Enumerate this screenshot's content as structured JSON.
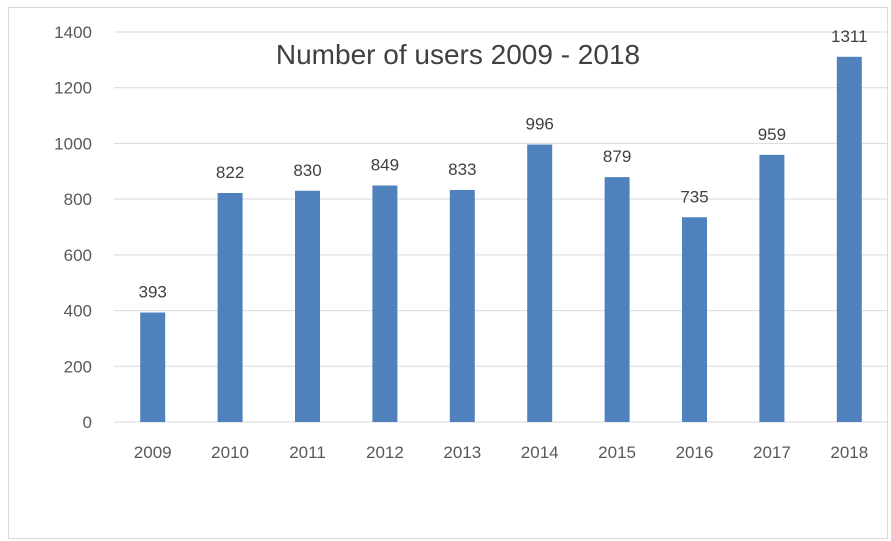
{
  "chart_data": {
    "type": "bar",
    "title": "Number of users 2009 - 2018",
    "xlabel": "",
    "ylabel": "",
    "categories": [
      "2009",
      "2010",
      "2011",
      "2012",
      "2013",
      "2014",
      "2015",
      "2016",
      "2017",
      "2018"
    ],
    "values": [
      393,
      822,
      830,
      849,
      833,
      996,
      879,
      735,
      959,
      1311
    ],
    "ylim": [
      0,
      1400
    ],
    "yticks": [
      0,
      200,
      400,
      600,
      800,
      1000,
      1200,
      1400
    ],
    "grid": true,
    "legend": "none",
    "bar_color": "#4f81bd",
    "data_labels": true
  }
}
